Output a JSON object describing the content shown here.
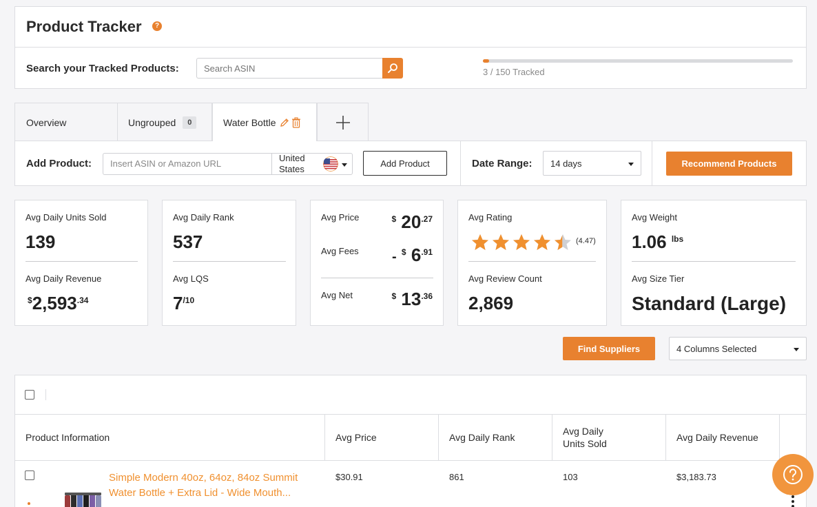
{
  "header": {
    "title": "Product Tracker",
    "help_glyph": "?",
    "search_label": "Search your Tracked Products:",
    "search_placeholder": "Search ASIN",
    "tracked_text": "3 / 150 Tracked",
    "tracked_count": 3,
    "tracked_limit": 150
  },
  "tabs": {
    "overview": "Overview",
    "ungrouped": "Ungrouped",
    "ungrouped_count": "0",
    "water_bottle": "Water Bottle"
  },
  "toolbar": {
    "add_label": "Add Product:",
    "add_placeholder": "Insert ASIN or Amazon URL",
    "country_line1": "United",
    "country_line2": "States",
    "add_button": "Add Product",
    "date_label": "Date Range:",
    "date_value": "14 days",
    "recommend_button": "Recommend Products"
  },
  "stats": {
    "units_label": "Avg Daily Units Sold",
    "units_value": "139",
    "revenue_label": "Avg Daily Revenue",
    "revenue_currency": "$",
    "revenue_main": "2,593",
    "revenue_cents": ".34",
    "rank_label": "Avg Daily Rank",
    "rank_value": "537",
    "lqs_label": "Avg LQS",
    "lqs_value": "7",
    "lqs_suffix": "/10",
    "price_label": "Avg Price",
    "price_currency": "$",
    "price_main": "20",
    "price_cents": ".27",
    "fees_label": "Avg Fees",
    "fees_prefix": "-",
    "fees_currency": "$",
    "fees_main": "6",
    "fees_cents": ".91",
    "net_label": "Avg Net",
    "net_currency": "$",
    "net_main": "13",
    "net_cents": ".36",
    "rating_label": "Avg Rating",
    "rating_value": 4.47,
    "rating_text": "(4.47)",
    "review_label": "Avg Review Count",
    "review_value": "2,869",
    "weight_label": "Avg Weight",
    "weight_value": "1.06",
    "weight_unit": "lbs",
    "size_label": "Avg Size Tier",
    "size_value": "Standard (Large)"
  },
  "actions": {
    "find_suppliers": "Find Suppliers",
    "columns_select": "4 Columns Selected"
  },
  "table": {
    "headers": [
      "Product Information",
      "Avg Price",
      "Avg Daily Rank",
      "Avg Daily Units Sold",
      "Avg Daily Revenue"
    ],
    "header_units_line1": "Avg Daily",
    "header_units_line2": "Units Sold",
    "rows": [
      {
        "title_line1": "Simple Modern 40oz, 64oz, 84oz Summit",
        "title_line2": "Water Bottle + Extra Lid - Wide Mouth...",
        "price": "$30.91",
        "rank": "861",
        "units": "103",
        "revenue": "$3,183.73"
      }
    ]
  },
  "colors": {
    "accent": "#e8812f",
    "border": "#dcdde1",
    "background": "#f5f5f7"
  }
}
